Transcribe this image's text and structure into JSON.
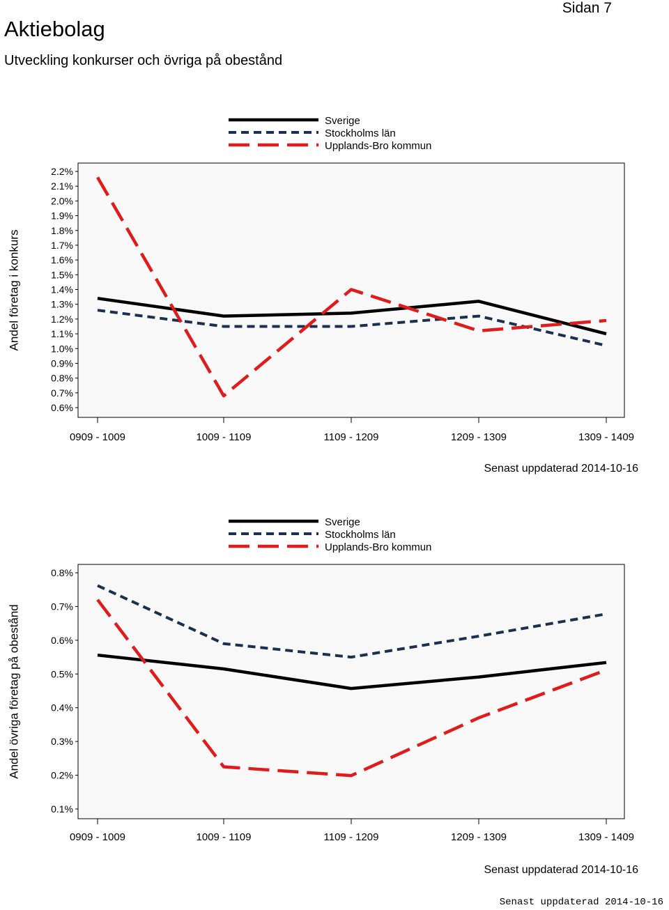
{
  "header": {
    "title": "Aktiebolag",
    "subtitle": "Utveckling konkurser och övriga på obestånd",
    "page": "Sidan 7"
  },
  "colors": {
    "sverige": "#000000",
    "stockholm": "#1b2f4f",
    "upplands_bro": "#e01b1b",
    "plot_bg": "#f8f8f8"
  },
  "chart_data": [
    {
      "type": "line",
      "ylabel": "Andel företag i konkurs",
      "xlabel": "",
      "categories": [
        "0909 - 1009",
        "1009 - 1109",
        "1109 - 1209",
        "1209 - 1309",
        "1309 - 1409"
      ],
      "ylim": [
        0.6,
        2.2
      ],
      "yticks": [
        0.6,
        0.7,
        0.8,
        0.9,
        1.0,
        1.1,
        1.2,
        1.3,
        1.4,
        1.5,
        1.6,
        1.7,
        1.8,
        1.9,
        2.0,
        2.1,
        2.2
      ],
      "ytick_labels": [
        "0.6%",
        "0.7%",
        "0.8%",
        "0.9%",
        "1.0%",
        "1.1%",
        "1.2%",
        "1.3%",
        "1.4%",
        "1.5%",
        "1.6%",
        "1.7%",
        "1.8%",
        "1.9%",
        "2.0%",
        "2.1%",
        "2.2%"
      ],
      "series": [
        {
          "name": "Sverige",
          "style": "solid",
          "values": [
            1.34,
            1.22,
            1.24,
            1.32,
            1.1
          ]
        },
        {
          "name": "Stockholms län",
          "style": "dotted",
          "values": [
            1.26,
            1.15,
            1.15,
            1.22,
            1.02
          ]
        },
        {
          "name": "Upplands-Bro kommun",
          "style": "dashed",
          "values": [
            2.16,
            0.68,
            1.4,
            1.12,
            1.19
          ]
        }
      ],
      "updated": "Senast uppdaterad 2014-10-16"
    },
    {
      "type": "line",
      "ylabel": "Andel övriga företag på obestånd",
      "xlabel": "",
      "categories": [
        "0909 - 1009",
        "1009 - 1109",
        "1109 - 1209",
        "1209 - 1309",
        "1309 - 1409"
      ],
      "ylim": [
        0.1,
        0.8
      ],
      "yticks": [
        0.1,
        0.2,
        0.3,
        0.4,
        0.5,
        0.6,
        0.7,
        0.8
      ],
      "ytick_labels": [
        "0.1%",
        "0.2%",
        "0.3%",
        "0.4%",
        "0.5%",
        "0.6%",
        "0.7%",
        "0.8%"
      ],
      "series": [
        {
          "name": "Sverige",
          "style": "solid",
          "values": [
            0.556,
            0.515,
            0.457,
            0.491,
            0.534
          ]
        },
        {
          "name": "Stockholms län",
          "style": "dotted",
          "values": [
            0.762,
            0.59,
            0.55,
            0.612,
            0.678
          ]
        },
        {
          "name": "Upplands-Bro kommun",
          "style": "dashed",
          "values": [
            0.72,
            0.225,
            0.199,
            0.37,
            0.512
          ]
        }
      ],
      "updated": "Senast uppdaterad 2014-10-16"
    }
  ],
  "footer": {
    "updated_mono": "Senast uppdaterad 2014-10-16"
  }
}
